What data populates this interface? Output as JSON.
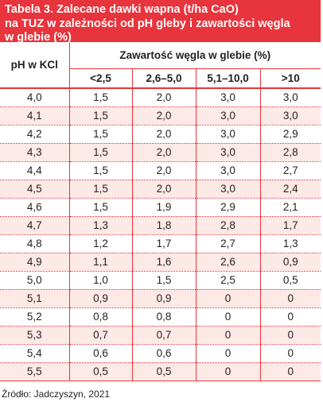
{
  "table": {
    "title_lines": [
      "Tabela 3.  Zalecane dawki wapna (t/ha CaO)",
      "na TUZ w zależności od pH gleby i zawartości węgla",
      "w glebie (%)"
    ],
    "row_header": "pH w KCl",
    "group_header": "Zawartość  węgla w glebie (%)",
    "columns": [
      "<2,5",
      "2,6–5,0",
      "5,1–10,0",
      ">10"
    ],
    "rows": [
      {
        "ph": "4,0",
        "values": [
          "1,5",
          "2,0",
          "3,0",
          "3,0"
        ]
      },
      {
        "ph": "4,1",
        "values": [
          "1,5",
          "2,0",
          "3,0",
          "3,0"
        ]
      },
      {
        "ph": "4,2",
        "values": [
          "1,5",
          "2,0",
          "3,0",
          "2,9"
        ]
      },
      {
        "ph": "4,3",
        "values": [
          "1,5",
          "2,0",
          "3,0",
          "2,8"
        ]
      },
      {
        "ph": "4,4",
        "values": [
          "1,5",
          "2,0",
          "3,0",
          "2,7"
        ]
      },
      {
        "ph": "4,5",
        "values": [
          "1,5",
          "2,0",
          "3,0",
          "2,4"
        ]
      },
      {
        "ph": "4,6",
        "values": [
          "1,5",
          "1,9",
          "2,9",
          "2,1"
        ]
      },
      {
        "ph": "4,7",
        "values": [
          "1,3",
          "1,8",
          "2,8",
          "1,7"
        ]
      },
      {
        "ph": "4,8",
        "values": [
          "1,2",
          "1,7",
          "2,7",
          "1,3"
        ]
      },
      {
        "ph": "4,9",
        "values": [
          "1,1",
          "1,6",
          "2,6",
          "0,9"
        ]
      },
      {
        "ph": "5,0",
        "values": [
          "1,0",
          "1,5",
          "2,5",
          "0,5"
        ]
      },
      {
        "ph": "5,1",
        "values": [
          "0,9",
          "0,9",
          "0",
          "0"
        ]
      },
      {
        "ph": "5,2",
        "values": [
          "0,8",
          "0,8",
          "0",
          "0"
        ]
      },
      {
        "ph": "5,3",
        "values": [
          "0,7",
          "0,7",
          "0",
          "0"
        ]
      },
      {
        "ph": "5,4",
        "values": [
          "0,6",
          "0,6",
          "0",
          "0"
        ]
      },
      {
        "ph": "5,5",
        "values": [
          "0,5",
          "0,5",
          "0",
          "0"
        ]
      }
    ],
    "source": "Źródło: Jadczyszyn, 2021"
  },
  "colors": {
    "accent": "#e8343c",
    "stripe": "#fde9e6",
    "text": "#231f20"
  }
}
